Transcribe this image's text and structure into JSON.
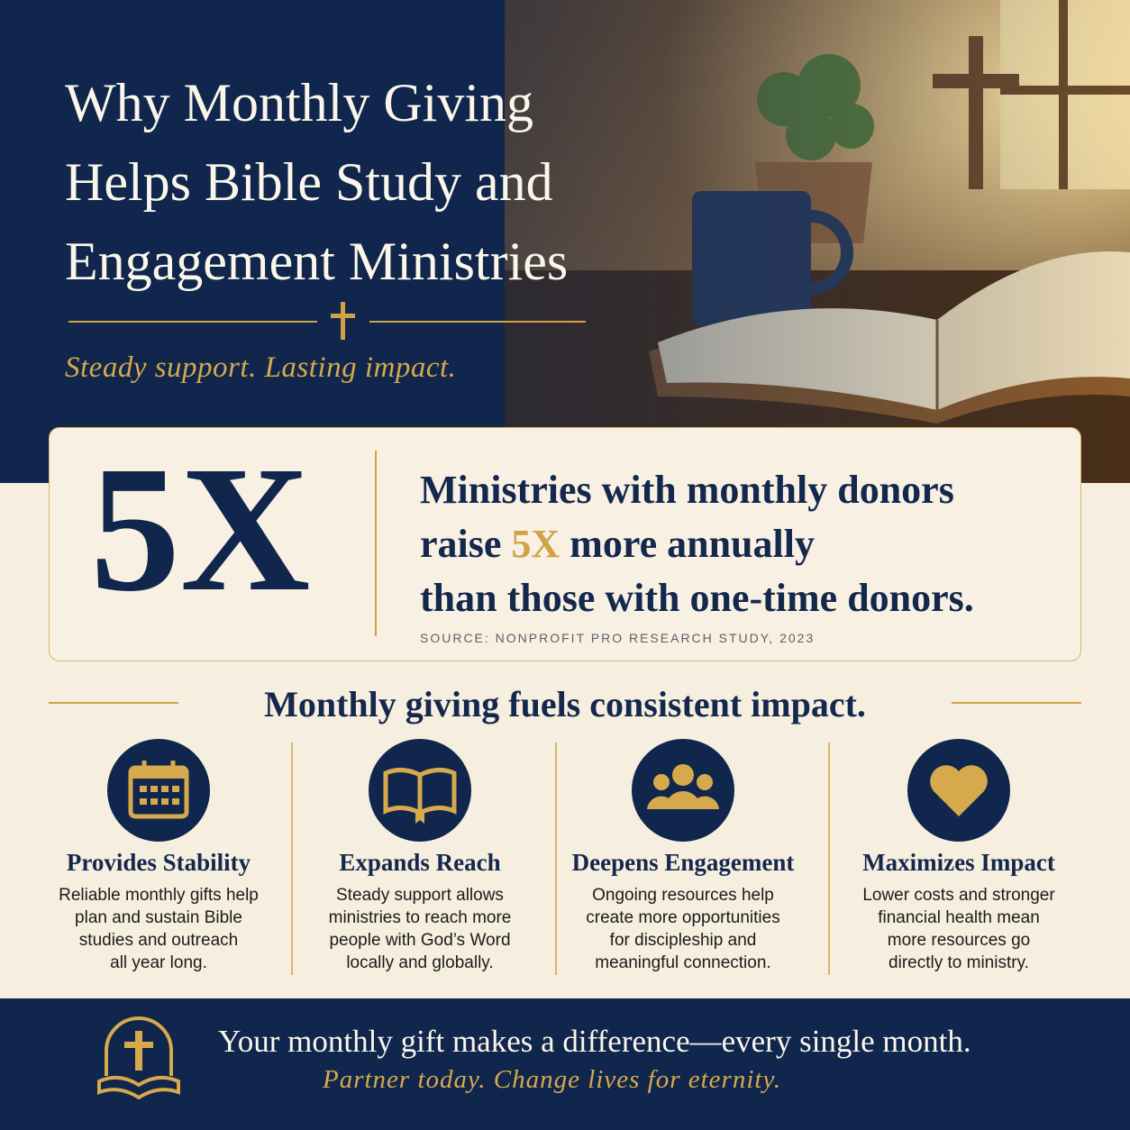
{
  "header": {
    "title_lines": [
      "Why Monthly Giving",
      "Helps Bible Study and",
      "Engagement Ministries"
    ],
    "tagline": "Steady support. Lasting impact."
  },
  "stat": {
    "big": "5X",
    "line1": "Ministries with monthly donors",
    "line2_before": "raise",
    "line2_highlight": "5X",
    "line2_after": "more annually",
    "line3": "than those with one-time donors.",
    "source": "SOURCE: NONPROFIT PRO RESEARCH STUDY, 2023"
  },
  "section": {
    "title": "Monthly giving fuels consistent impact."
  },
  "features": [
    {
      "title": "Provides Stability",
      "lines": [
        "Reliable monthly gifts help",
        "plan and sustain Bible",
        "studies and outreach",
        "all year long."
      ]
    },
    {
      "title": "Expands Reach",
      "lines": [
        "Steady support allows",
        "ministries to reach more",
        "people with God’s Word",
        "locally and globally."
      ]
    },
    {
      "title": "Deepens Engagement",
      "lines": [
        "Ongoing resources help",
        "create more opportunities",
        "for discipleship and",
        "meaningful connection."
      ]
    },
    {
      "title": "Maximizes Impact",
      "lines": [
        "Lower costs and stronger",
        "financial health mean",
        "more resources go",
        "directly to ministry."
      ]
    }
  ],
  "footer": {
    "line1": "Your monthly gift makes a difference—every single month.",
    "line2": "Partner today. Change lives for eternity."
  }
}
